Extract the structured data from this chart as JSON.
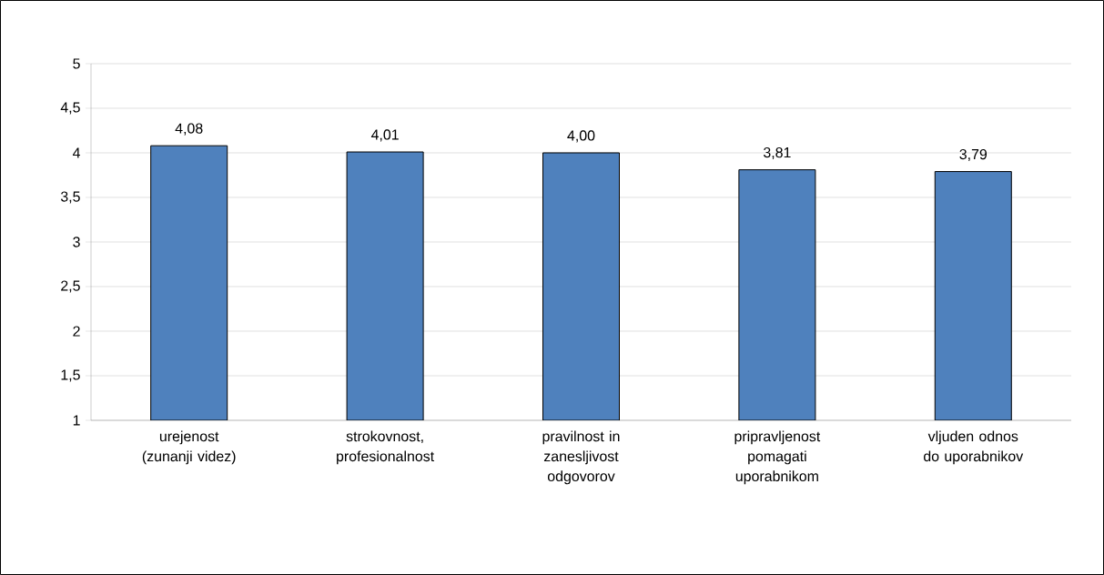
{
  "chart_data": {
    "type": "bar",
    "categories": [
      "urejenost (zunanji videz)",
      "strokovnost, profesionalnost",
      "pravilnost in zanesljivost odgovorov",
      "pripravljenost pomagati uporabnikom",
      "vljuden odnos do uporabnikov"
    ],
    "values": [
      4.08,
      4.01,
      4.0,
      3.81,
      3.79
    ],
    "value_labels": [
      "4,08",
      "4,01",
      "4,00",
      "3,81",
      "3,79"
    ],
    "color": "#4f81bd",
    "ylim": [
      1,
      5
    ],
    "yticks": [
      1,
      {
        "value": 1.5,
        "label": "1,5"
      },
      2,
      {
        "value": 2.5,
        "label": "2,5"
      },
      3,
      {
        "value": 3.5,
        "label": "3,5"
      },
      4,
      {
        "value": 4.5,
        "label": "4,5"
      },
      5
    ],
    "grid": "y"
  }
}
